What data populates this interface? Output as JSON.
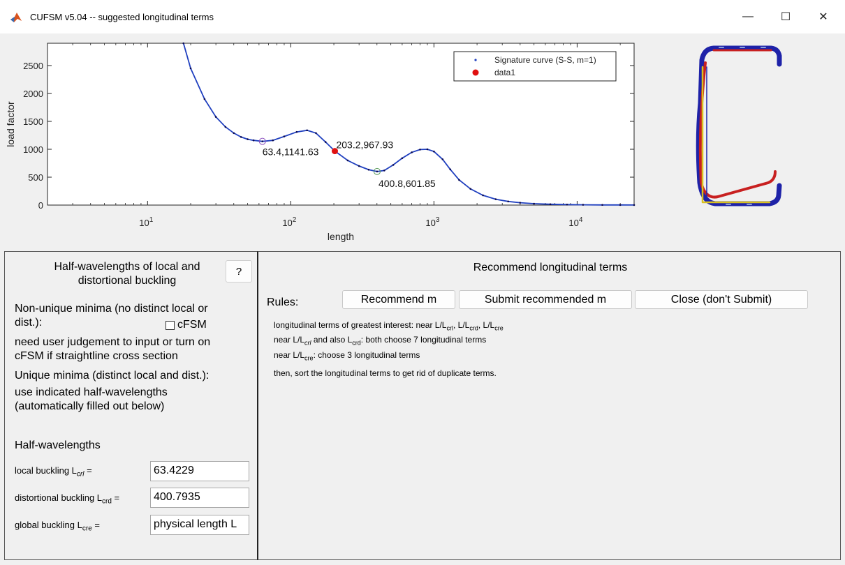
{
  "window": {
    "title": "CUFSM v5.04 -- suggested longitudinal terms",
    "minimize_glyph": "—",
    "maximize_glyph": "☐",
    "close_glyph": "✕",
    "app_icon": "matlab-icon"
  },
  "chart_data": {
    "type": "line",
    "xscale": "log",
    "xlabel": "length",
    "ylabel": "load factor",
    "xlim": [
      2,
      25000
    ],
    "ylim": [
      0,
      2900
    ],
    "x_ticks": [
      10,
      100,
      1000,
      10000
    ],
    "x_tick_labels": [
      {
        "base": "10",
        "exp": "1"
      },
      {
        "base": "10",
        "exp": "2"
      },
      {
        "base": "10",
        "exp": "3"
      },
      {
        "base": "10",
        "exp": "4"
      }
    ],
    "y_ticks": [
      0,
      500,
      1000,
      1500,
      2000,
      2500
    ],
    "y_tick_labels": [
      "0",
      "500",
      "1000",
      "1500",
      "2000",
      "2500"
    ],
    "legend_position": "top-right",
    "series": [
      {
        "name": "Signature curve (S-S, m=1)",
        "color": "#1f3fbf",
        "x": [
          17.8,
          20,
          25,
          30,
          35,
          40,
          45,
          50,
          55,
          63.4,
          75,
          90,
          110,
          130,
          150,
          175,
          203.2,
          250,
          300,
          350,
          400.8,
          450,
          520,
          600,
          700,
          800,
          900,
          1000,
          1150,
          1300,
          1500,
          1800,
          2200,
          2700,
          3300,
          4000,
          5000,
          6500,
          8500,
          11000,
          15000,
          20000,
          25000
        ],
        "y": [
          2900,
          2450,
          1900,
          1580,
          1400,
          1290,
          1220,
          1180,
          1160,
          1141.63,
          1160,
          1230,
          1310,
          1340,
          1290,
          1130,
          967.93,
          800,
          700,
          635,
          601.85,
          620,
          720,
          840,
          945,
          995,
          1000,
          960,
          820,
          640,
          450,
          290,
          175,
          105,
          65,
          42,
          25,
          15,
          9,
          5,
          3,
          2,
          1
        ]
      },
      {
        "name": "data1",
        "color": "#e01010",
        "x": [
          203.2
        ],
        "y": [
          967.93
        ]
      }
    ],
    "annotations": [
      {
        "label": "63.4,1141.63",
        "x": 63.4,
        "y": 1141.63,
        "marker_color": "#8a4fbf"
      },
      {
        "label": "203.2,967.93",
        "x": 203.2,
        "y": 967.93,
        "marker_color": "#e01010"
      },
      {
        "label": "400.8,601.85",
        "x": 400.8,
        "y": 601.85,
        "marker_color": "#5a9a5a"
      }
    ]
  },
  "left_panel": {
    "title_line1": "Half-wavelengths of local and",
    "title_line2": "distortional buckling",
    "help_label": "?",
    "nonunique_line1": "Non-unique minima (no distinct local or",
    "nonunique_line2": "dist.):",
    "cfsm_label": "cFSM",
    "judgement_line1": "need user judgement to input or turn on",
    "judgement_line2": "cFSM if straightline cross section",
    "unique_line1": "Unique minima (distinct local and dist.):",
    "unique_line2": "use indicated half-wavelengths",
    "unique_line3": "(automatically filled out below)",
    "half_wavelengths_heading": "Half-wavelengths",
    "local_label": "local buckling L",
    "local_sub": "crl",
    "local_value": "63.4229",
    "dist_label": "distortional buckling L",
    "dist_sub": "crd",
    "dist_value": "400.7935",
    "global_label": "global buckling L",
    "global_sub": "cre",
    "global_value": "physical length L",
    "equals": " ="
  },
  "right_panel": {
    "title": "Recommend longitudinal terms",
    "rules_label": "Rules:",
    "recommend_button": "Recommend m",
    "submit_button": "Submit recommended m",
    "close_button": "Close (don't Submit)",
    "rule1_a": "longitudinal terms of greatest interest: near L/L",
    "rule1_sub1": "crl",
    "rule1_b": ", L/L",
    "rule1_sub2": "crd",
    "rule1_c": ", L/L",
    "rule1_sub3": "cre",
    "rule2_a": "near L/L",
    "rule2_sub1": "crl",
    "rule2_b": " and also L",
    "rule2_sub2": "crd",
    "rule2_c": ": both choose 7 longitudinal terms",
    "rule3_a": "near L/L",
    "rule3_sub1": "cre",
    "rule3_b": ": choose 3 longitudinal terms",
    "rule4": "then, sort the longitudinal terms to get rid of duplicate terms."
  }
}
